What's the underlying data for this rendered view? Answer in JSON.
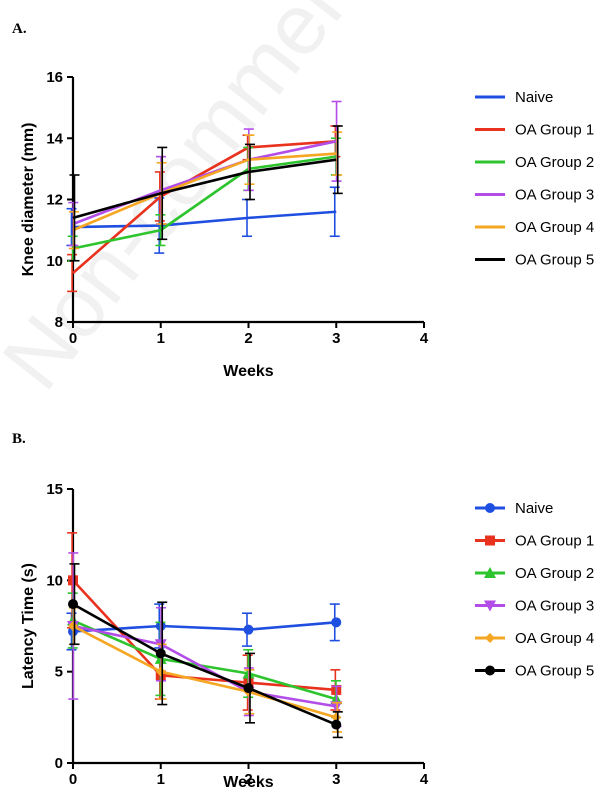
{
  "panels": [
    {
      "label": "A."
    },
    {
      "label": "B."
    }
  ],
  "watermark": "Non-commercial use",
  "chart_data": [
    {
      "type": "line",
      "panel": "A.",
      "xlabel": "Weeks",
      "ylabel": "Knee diameter (mm)",
      "xlim": [
        0,
        4
      ],
      "ylim": [
        8,
        16
      ],
      "xticks": [
        0,
        1,
        2,
        3,
        4
      ],
      "yticks": [
        8,
        10,
        12,
        14,
        16
      ],
      "markers": false,
      "legend": "right",
      "x": [
        0,
        1,
        2,
        3
      ],
      "series": [
        {
          "name": "Naive",
          "color": "#1f4fe0",
          "values": [
            11.1,
            11.15,
            11.4,
            11.6
          ],
          "errors": [
            0.6,
            0.9,
            0.6,
            0.8
          ],
          "marker": "none"
        },
        {
          "name": "OA Group 1",
          "color": "#e8321e",
          "values": [
            9.6,
            12.1,
            13.7,
            13.9
          ],
          "errors": [
            0.6,
            0.8,
            0.4,
            0.5
          ],
          "marker": "none"
        },
        {
          "name": "OA Group 2",
          "color": "#2ec42e",
          "values": [
            10.4,
            11.0,
            13.0,
            13.4
          ],
          "errors": [
            0.4,
            0.5,
            0.7,
            0.6
          ],
          "marker": "none"
        },
        {
          "name": "OA Group 3",
          "color": "#b34de8",
          "values": [
            11.2,
            12.3,
            13.3,
            13.9
          ],
          "errors": [
            0.7,
            1.1,
            1.0,
            1.3
          ],
          "marker": "none"
        },
        {
          "name": "OA Group 4",
          "color": "#f5a623",
          "values": [
            11.0,
            12.2,
            13.3,
            13.5
          ],
          "errors": [
            0.6,
            1.0,
            0.8,
            0.7
          ],
          "marker": "none"
        },
        {
          "name": "OA Group 5",
          "color": "#000000",
          "values": [
            11.4,
            12.2,
            12.9,
            13.3
          ],
          "errors": [
            1.4,
            1.5,
            0.9,
            1.1
          ],
          "marker": "none"
        }
      ]
    },
    {
      "type": "line",
      "panel": "B.",
      "xlabel": "Weeks",
      "ylabel": "Latency Time (s)",
      "xlim": [
        0,
        4
      ],
      "ylim": [
        0,
        15
      ],
      "xticks": [
        0,
        1,
        2,
        3,
        4
      ],
      "yticks": [
        0,
        5,
        10,
        15
      ],
      "markers": true,
      "legend": "right",
      "x": [
        0,
        1,
        2,
        3
      ],
      "series": [
        {
          "name": "Naive",
          "color": "#1f4fe0",
          "values": [
            7.2,
            7.5,
            7.3,
            7.7
          ],
          "errors": [
            1.0,
            1.2,
            0.9,
            1.0
          ],
          "marker": "circle"
        },
        {
          "name": "OA Group 1",
          "color": "#e8321e",
          "values": [
            10.0,
            4.8,
            4.4,
            4.0
          ],
          "errors": [
            2.6,
            1.3,
            1.5,
            1.1
          ],
          "marker": "square"
        },
        {
          "name": "OA Group 2",
          "color": "#2ec42e",
          "values": [
            7.8,
            5.7,
            4.9,
            3.5
          ],
          "errors": [
            1.5,
            2.0,
            1.3,
            1.0
          ],
          "marker": "triangle-up"
        },
        {
          "name": "OA Group 3",
          "color": "#b34de8",
          "values": [
            7.5,
            6.5,
            3.9,
            3.1
          ],
          "errors": [
            4.0,
            2.0,
            1.3,
            1.1
          ],
          "marker": "triangle-down"
        },
        {
          "name": "OA Group 4",
          "color": "#f5a623",
          "values": [
            7.5,
            5.0,
            3.9,
            2.5
          ],
          "errors": [
            1.0,
            1.5,
            1.2,
            0.8
          ],
          "marker": "diamond"
        },
        {
          "name": "OA Group 5",
          "color": "#000000",
          "values": [
            8.7,
            6.0,
            4.1,
            2.1
          ],
          "errors": [
            2.2,
            2.8,
            1.9,
            0.7
          ],
          "marker": "circle"
        }
      ]
    }
  ]
}
